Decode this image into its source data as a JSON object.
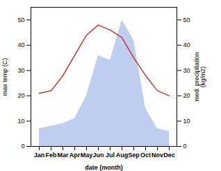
{
  "chart_data": {
    "type": "line",
    "xlabel": "date (month)",
    "ylabel": "max temp (C)",
    "y2label": "med. precipitation\n(kg/m2)",
    "categories": [
      "Jan",
      "Feb",
      "Mar",
      "Apr",
      "May",
      "Jun",
      "Jul",
      "Aug",
      "Sep",
      "Oct",
      "Nov",
      "Dec"
    ],
    "series": [
      {
        "type": "line",
        "color": "#c0392b",
        "values": [
          21,
          22,
          28,
          36,
          44,
          48,
          46,
          43,
          35,
          28,
          22,
          20
        ]
      },
      {
        "type": "area",
        "color": "#b8c8ee",
        "axis": "y2",
        "values": [
          7,
          8,
          9,
          11,
          20,
          36,
          34,
          50,
          42,
          15,
          7,
          6
        ]
      }
    ],
    "ylim": [
      0,
      55
    ],
    "yticks": [
      0,
      10,
      20,
      30,
      40,
      50
    ],
    "y2lim": [
      0,
      55
    ],
    "y2ticks": [
      0,
      10,
      20,
      30,
      40,
      50
    ]
  }
}
